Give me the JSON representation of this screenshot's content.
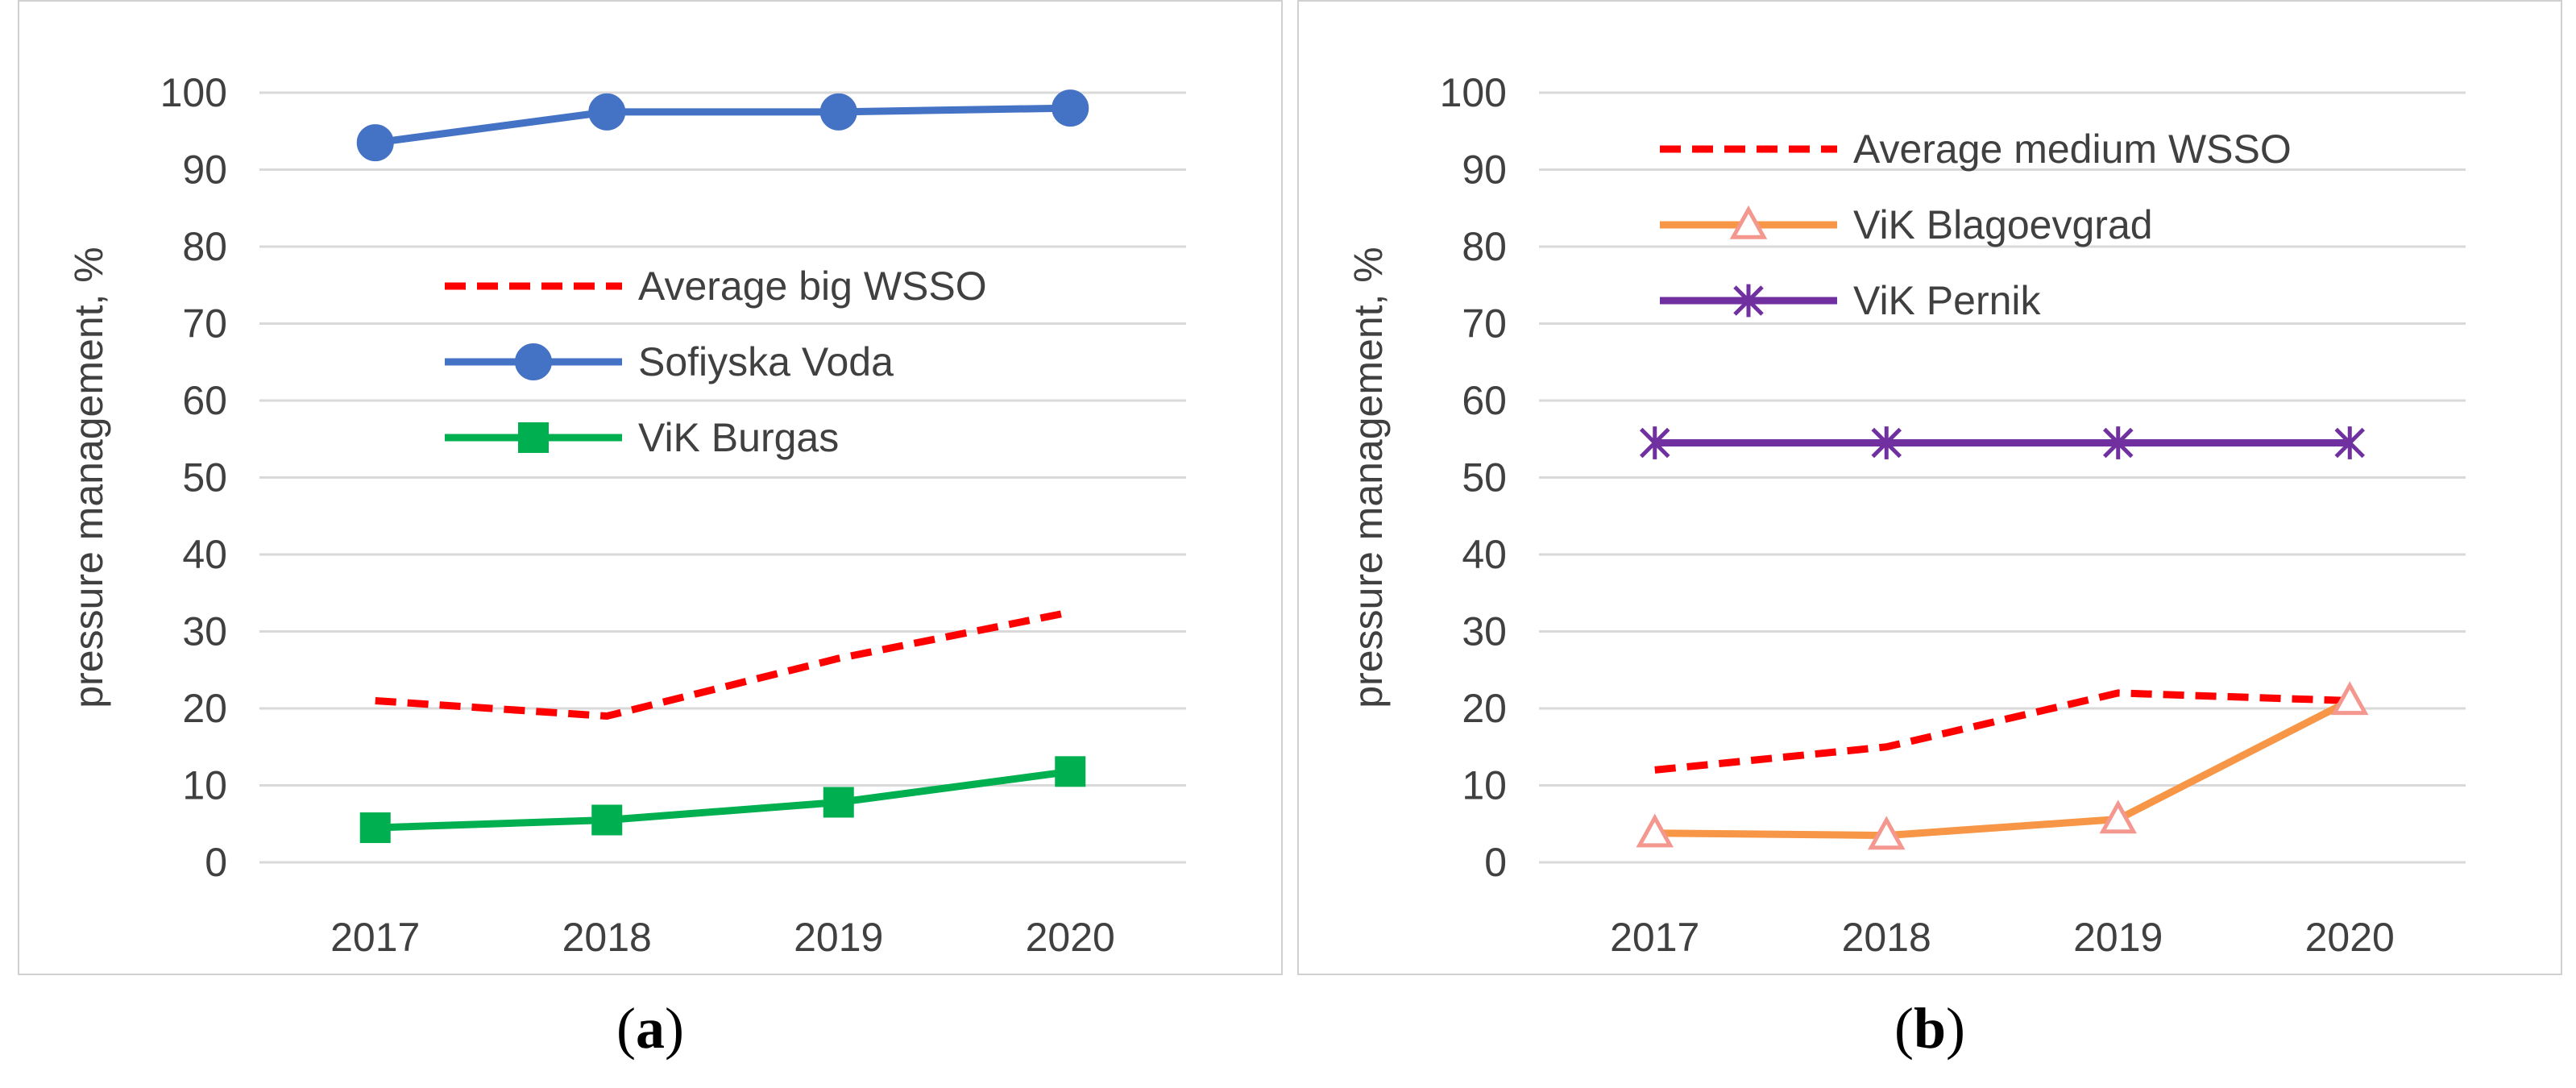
{
  "chart_data": [
    {
      "type": "line",
      "panel_label": "a",
      "categories": [
        "2017",
        "2018",
        "2019",
        "2020"
      ],
      "ylabel": "pressure management, %",
      "ylim": [
        0,
        100
      ],
      "yticks": [
        "0",
        "10",
        "20",
        "30",
        "40",
        "50",
        "60",
        "70",
        "80",
        "90",
        "100"
      ],
      "grid": true,
      "legend_position": "center",
      "series": [
        {
          "name": "Average big WSSO",
          "values": [
            21,
            19,
            26.5,
            32.5
          ],
          "color": "#ff0000",
          "style": "dashed",
          "marker": "none"
        },
        {
          "name": "Sofiyska Voda",
          "values": [
            93.5,
            97.5,
            97.5,
            98
          ],
          "color": "#4472c4",
          "style": "solid",
          "marker": "circle"
        },
        {
          "name": "ViK Burgas",
          "values": [
            4.5,
            5.5,
            7.8,
            11.8
          ],
          "color": "#00b050",
          "style": "solid",
          "marker": "square"
        }
      ]
    },
    {
      "type": "line",
      "panel_label": "b",
      "categories": [
        "2017",
        "2018",
        "2019",
        "2020"
      ],
      "ylabel": "pressure management, %",
      "ylim": [
        0,
        100
      ],
      "yticks": [
        "0",
        "10",
        "20",
        "30",
        "40",
        "50",
        "60",
        "70",
        "80",
        "90",
        "100"
      ],
      "grid": true,
      "legend_position": "top-center",
      "series": [
        {
          "name": "Average medium WSSO",
          "values": [
            12,
            15,
            22,
            21
          ],
          "color": "#ff0000",
          "style": "dashed",
          "marker": "none"
        },
        {
          "name": "ViK Blagoevgrad",
          "values": [
            3.8,
            3.5,
            5.6,
            21
          ],
          "color": "#f79646",
          "style": "solid",
          "marker": "triangle",
          "marker_color": "#f4978e"
        },
        {
          "name": "ViK Pernik",
          "values": [
            54.5,
            54.5,
            54.5,
            54.5
          ],
          "color": "#7030a0",
          "style": "solid",
          "marker": "star"
        }
      ]
    }
  ]
}
